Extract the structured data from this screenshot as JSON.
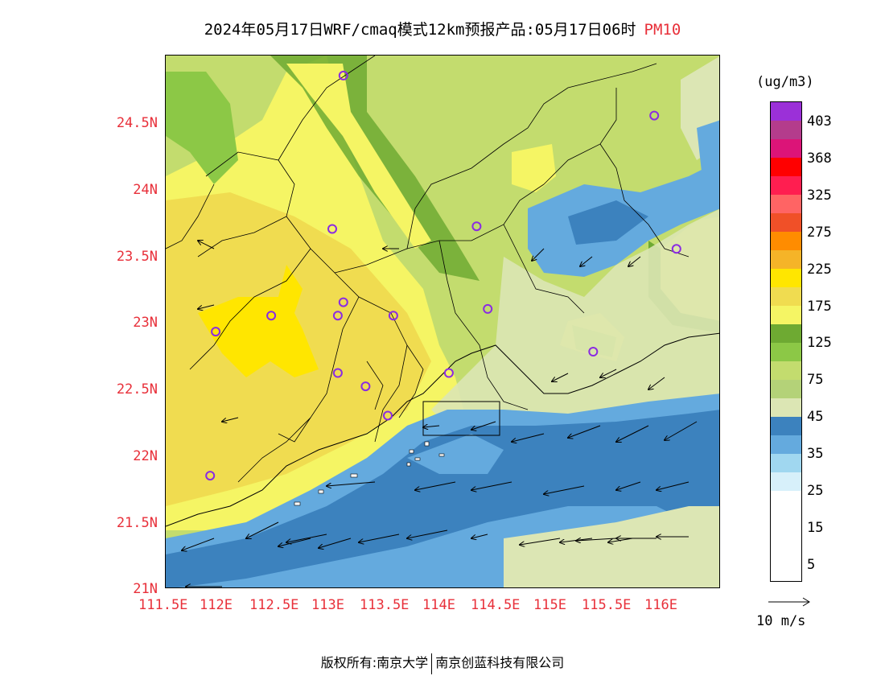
{
  "title": {
    "main": "2024年05月17日WRF/cmaq模式12km预报产品:05月17日06时",
    "variable": "PM10"
  },
  "axes": {
    "lat_labels": [
      "24.5N",
      "24N",
      "23.5N",
      "23N",
      "22.5N",
      "22N",
      "21.5N",
      "21N"
    ],
    "lon_labels": [
      "111.5E",
      "112E",
      "112.5E",
      "113E",
      "113.5E",
      "114E",
      "114.5E",
      "115E",
      "115.5E",
      "116E"
    ]
  },
  "legend": {
    "unit": "(ug/m3)",
    "labels": [
      "403",
      "368",
      "325",
      "275",
      "225",
      "175",
      "125",
      "75",
      "45",
      "35",
      "25",
      "15",
      "5"
    ],
    "colors": [
      "#9b30d8",
      "#b43c8c",
      "#dc1478",
      "#ff0000",
      "#ff1e50",
      "#ff6464",
      "#f05028",
      "#ff8c00",
      "#f5b428",
      "#ffe600",
      "#f0dc50",
      "#f5f564",
      "#6eaa32",
      "#8cc846",
      "#c3dc6e",
      "#b4d278",
      "#dce6b4",
      "#3c82be",
      "#64aade",
      "#a0d7f0",
      "#d7f0fa",
      "#ffffff"
    ]
  },
  "wind_vector": {
    "label": "10 m/s"
  },
  "footer": {
    "left": "版权所有:南京大学",
    "right": "南京创蓝科技有限公司"
  },
  "markers": [
    {
      "lon": 113.1,
      "lat": 24.85
    },
    {
      "lon": 115.9,
      "lat": 24.55
    },
    {
      "lon": 113.0,
      "lat": 23.7
    },
    {
      "lon": 114.3,
      "lat": 23.72
    },
    {
      "lon": 116.1,
      "lat": 23.55
    },
    {
      "lon": 113.1,
      "lat": 23.15
    },
    {
      "lon": 113.05,
      "lat": 23.05
    },
    {
      "lon": 112.45,
      "lat": 23.05
    },
    {
      "lon": 111.95,
      "lat": 22.93
    },
    {
      "lon": 113.55,
      "lat": 23.05
    },
    {
      "lon": 114.4,
      "lat": 23.1
    },
    {
      "lon": 115.35,
      "lat": 22.78
    },
    {
      "lon": 113.05,
      "lat": 22.62
    },
    {
      "lon": 113.3,
      "lat": 22.52
    },
    {
      "lon": 114.05,
      "lat": 22.62
    },
    {
      "lon": 113.5,
      "lat": 22.3
    },
    {
      "lon": 111.9,
      "lat": 21.85
    }
  ]
}
